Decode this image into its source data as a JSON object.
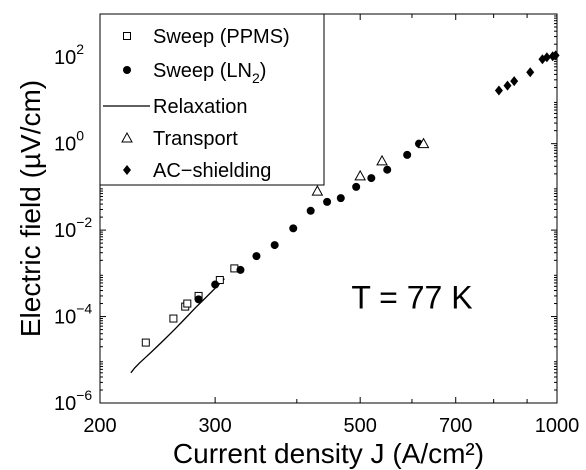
{
  "chart_data": {
    "type": "scatter",
    "title": "",
    "xlabel": "Current density J (A/cm²)",
    "ylabel": "Electric field (µV/cm)",
    "xscale": "log",
    "yscale": "log",
    "xlim": [
      200,
      1000
    ],
    "ylim": [
      1e-06,
      1000
    ],
    "x_ticks": [
      {
        "value": 200,
        "label": "200"
      },
      {
        "value": 300,
        "label": "300"
      },
      {
        "value": 500,
        "label": "500"
      },
      {
        "value": 700,
        "label": "700"
      },
      {
        "value": 1000,
        "label": "1000"
      }
    ],
    "x_minor_ticks": [
      400,
      600,
      800,
      900
    ],
    "y_ticks": [
      {
        "value": 1e-06,
        "base": "10",
        "exp": "−6"
      },
      {
        "value": 0.0001,
        "base": "10",
        "exp": "−4"
      },
      {
        "value": 0.01,
        "base": "10",
        "exp": "−2"
      },
      {
        "value": 1,
        "base": "10",
        "exp": "0"
      },
      {
        "value": 100,
        "base": "10",
        "exp": "2"
      }
    ],
    "grid": false,
    "legend_position": "top-left",
    "annotations": [
      {
        "text": "T = 77 K",
        "x": 600,
        "y": 0.0001
      }
    ],
    "series": [
      {
        "name": "Sweep (PPMS)",
        "marker": "open-square",
        "x": [
          235,
          259,
          270,
          272,
          283,
          305,
          321
        ],
        "y": [
          2.5e-05,
          9e-05,
          0.00017,
          0.0002,
          0.0003,
          0.0007,
          0.0013
        ]
      },
      {
        "name": "Sweep (LN",
        "name_sub": "2",
        "name_suffix": ")",
        "marker": "filled-circle",
        "x": [
          283,
          300,
          328,
          347,
          370,
          395,
          420,
          445,
          467,
          493,
          520,
          550,
          590,
          615
        ],
        "y": [
          0.00025,
          0.00055,
          0.0012,
          0.0025,
          0.0045,
          0.011,
          0.028,
          0.045,
          0.055,
          0.1,
          0.16,
          0.25,
          0.55,
          1.0
        ]
      },
      {
        "name": "Relaxation",
        "marker": "line",
        "x": [
          223,
          226,
          230,
          235,
          240,
          250,
          260,
          270,
          280,
          290,
          300,
          310
        ],
        "y": [
          5e-06,
          6.5e-06,
          8.5e-06,
          1.15e-05,
          1.55e-05,
          2.8e-05,
          5e-05,
          9e-05,
          0.00016,
          0.00027,
          0.00045,
          0.00075
        ]
      },
      {
        "name": "Transport",
        "marker": "open-triangle",
        "x": [
          430,
          500,
          540,
          625
        ],
        "y": [
          0.08,
          0.18,
          0.4,
          1.0
        ]
      },
      {
        "name": "AC−shielding",
        "marker": "filled-diamond",
        "x": [
          815,
          840,
          860,
          910,
          950,
          965,
          985,
          995
        ],
        "y": [
          17,
          22,
          28,
          45,
          90,
          100,
          105,
          110
        ]
      }
    ]
  }
}
